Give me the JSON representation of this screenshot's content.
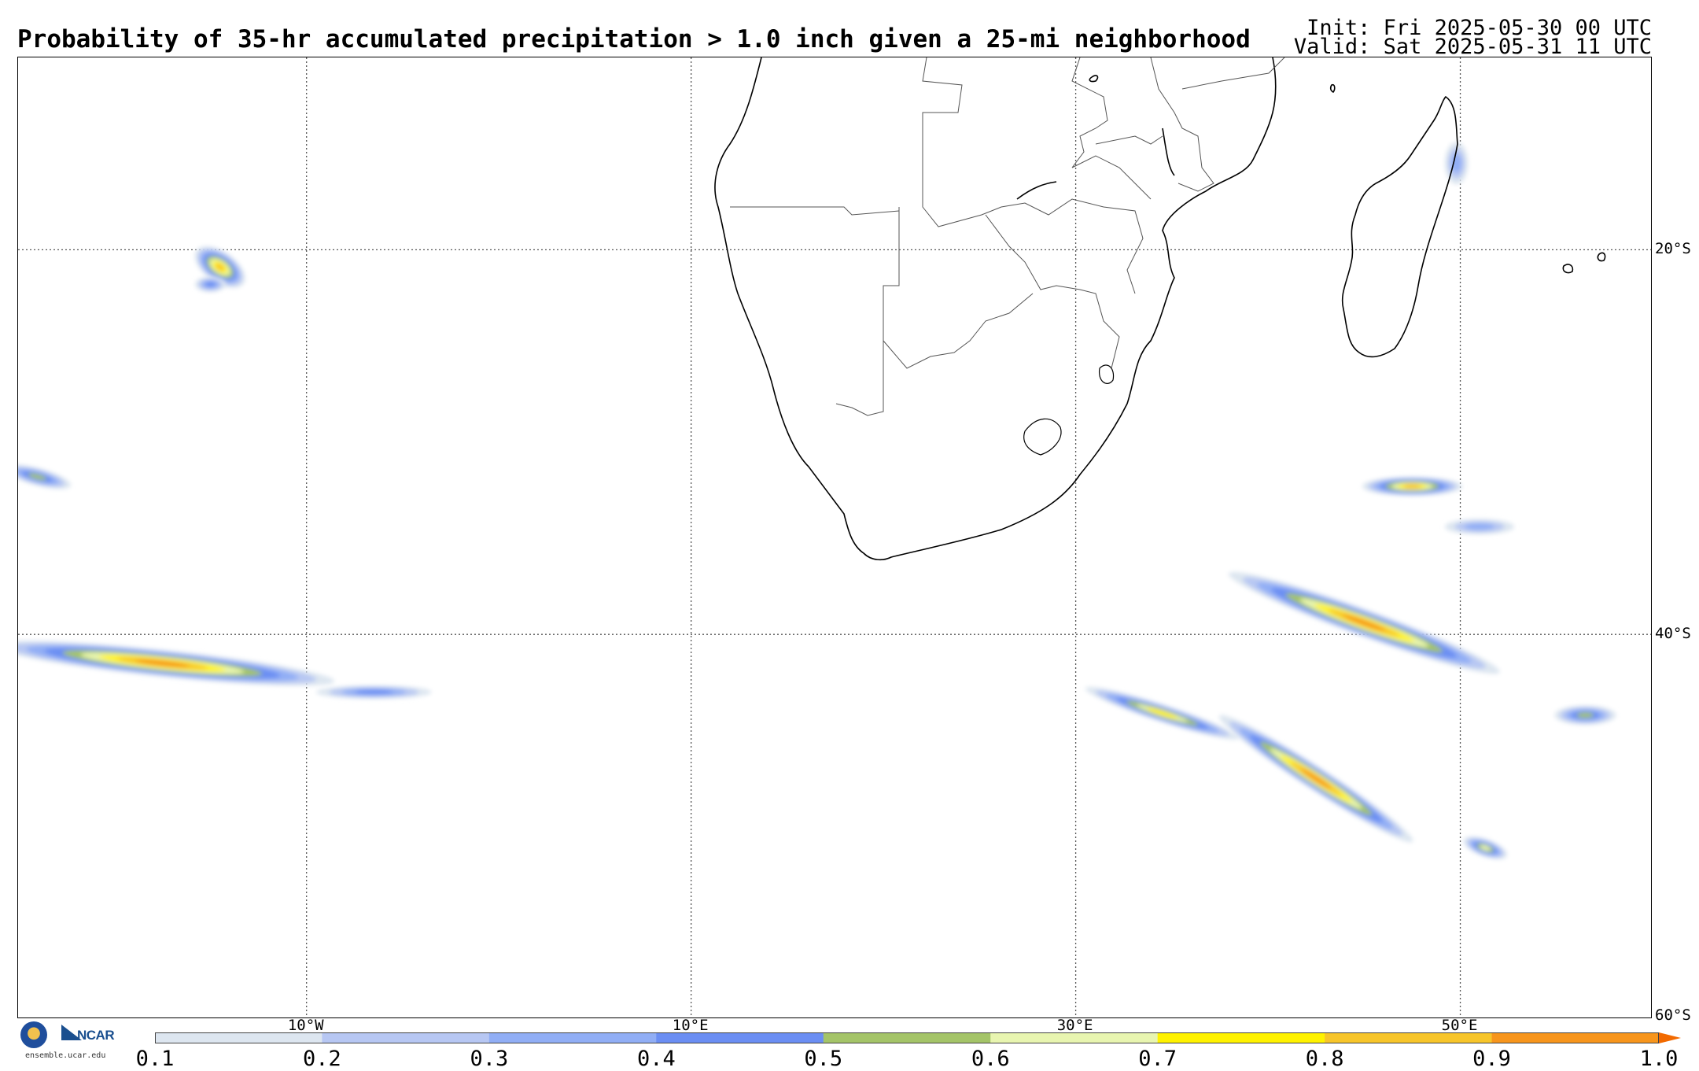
{
  "header": {
    "title": "Probability of 35-hr accumulated precipitation > 1.0 inch given a 25-mi neighborhood",
    "init": "Init: Fri 2025-05-30 00 UTC",
    "valid": "Valid: Sat 2025-05-31 11 UTC"
  },
  "map": {
    "lon_range": [
      -25,
      60
    ],
    "lat_range": [
      -60,
      -10
    ],
    "lat_labels": [
      {
        "lat": -20,
        "text": "20°S"
      },
      {
        "lat": -40,
        "text": "40°S"
      },
      {
        "lat": -60,
        "text": "60°S"
      }
    ],
    "lon_labels": [
      {
        "lon": -10,
        "text": "10°W"
      },
      {
        "lon": 10,
        "text": "10°E"
      },
      {
        "lon": 30,
        "text": "30°E"
      },
      {
        "lon": 50,
        "text": "50°E"
      }
    ],
    "gridline_style": "dotted",
    "coastline_color": "#000000",
    "border_color": "#555555",
    "precip_features": [
      {
        "name": "cell-atlantic-north",
        "lon": -14.5,
        "lat": -20.9,
        "rx": 1.5,
        "ry": 0.8,
        "rot": 35,
        "peak": 0.9
      },
      {
        "name": "cell-atlantic-north-b",
        "lon": -15.0,
        "lat": -21.8,
        "rx": 0.8,
        "ry": 0.4,
        "rot": 0,
        "peak": 0.5
      },
      {
        "name": "cell-atlantic-west",
        "lon": -24.0,
        "lat": -31.8,
        "rx": 1.8,
        "ry": 0.45,
        "rot": 15,
        "peak": 0.6
      },
      {
        "name": "band-atlantic-south",
        "lon": -17.5,
        "lat": -41.5,
        "rx": 9.0,
        "ry": 0.7,
        "rot": 6,
        "peak": 0.95
      },
      {
        "name": "band-atlantic-tail",
        "lon": -6.5,
        "lat": -43.0,
        "rx": 3.0,
        "ry": 0.35,
        "rot": 0,
        "peak": 0.45
      },
      {
        "name": "cell-madagascar-east",
        "lon": 49.8,
        "lat": -15.5,
        "rx": 0.6,
        "ry": 1.1,
        "rot": 0,
        "peak": 0.4
      },
      {
        "name": "cell-indian-east-a",
        "lon": 47.5,
        "lat": -32.3,
        "rx": 2.6,
        "ry": 0.5,
        "rot": 0,
        "peak": 0.9
      },
      {
        "name": "cell-indian-east-b",
        "lon": 51.0,
        "lat": -34.4,
        "rx": 1.8,
        "ry": 0.4,
        "rot": 0,
        "peak": 0.4
      },
      {
        "name": "band-indian-northeast",
        "lon": 45.0,
        "lat": -39.4,
        "rx": 7.5,
        "ry": 0.7,
        "rot": 20,
        "peak": 0.95
      },
      {
        "name": "cell-indian-far-east",
        "lon": 56.5,
        "lat": -44.2,
        "rx": 1.6,
        "ry": 0.5,
        "rot": 0,
        "peak": 0.6
      },
      {
        "name": "band-indian-southwest-a",
        "lon": 34.5,
        "lat": -44.1,
        "rx": 4.2,
        "ry": 0.45,
        "rot": 18,
        "peak": 0.8
      },
      {
        "name": "band-indian-southwest-b",
        "lon": 42.5,
        "lat": -47.5,
        "rx": 6.0,
        "ry": 0.6,
        "rot": 33,
        "peak": 0.95
      },
      {
        "name": "cell-indian-south",
        "lon": 51.3,
        "lat": -51.1,
        "rx": 1.2,
        "ry": 0.45,
        "rot": 20,
        "peak": 0.7
      }
    ]
  },
  "colorbar": {
    "levels": [
      0.1,
      0.2,
      0.3,
      0.4,
      0.5,
      0.6,
      0.7,
      0.8,
      0.9,
      1.0
    ],
    "labels": [
      "0.1",
      "0.2",
      "0.3",
      "0.4",
      "0.5",
      "0.6",
      "0.7",
      "0.8",
      "0.9",
      "1.0"
    ],
    "colors": [
      "#dde6f0",
      "#b7c7f3",
      "#91aef5",
      "#6b8ef3",
      "#a4c468",
      "#e8f5b0",
      "#fff200",
      "#f7c52a",
      "#f7951c"
    ],
    "over_color": "#f26a00"
  },
  "logo": {
    "org": "NCAR",
    "url": "ensemble.ucar.edu"
  }
}
